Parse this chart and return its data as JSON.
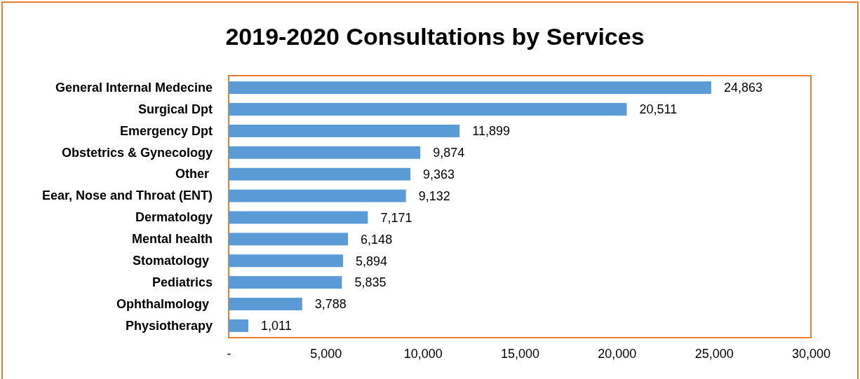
{
  "chart_data": {
    "type": "bar",
    "orientation": "horizontal",
    "title": "2019-2020 Consultations by Services",
    "categories": [
      "General Internal Medecine",
      "Surgical Dpt",
      "Emergency Dpt",
      "Obstetrics & Gynecology",
      "Other ",
      "Eear, Nose and Throat (ENT)",
      "Dermatology",
      "Mental health",
      "Stomatology ",
      "Pediatrics",
      "Ophthalmology ",
      "Physiotherapy"
    ],
    "values": [
      24863,
      20511,
      11899,
      9874,
      9363,
      9132,
      7171,
      6148,
      5894,
      5835,
      3788,
      1011
    ],
    "color": "#5b9bd5",
    "xlim": [
      0,
      30000
    ],
    "xticks": [
      {
        "value": 0,
        "label": "-"
      },
      {
        "value": 5000,
        "label": "5,000"
      },
      {
        "value": 10000,
        "label": "10,000"
      },
      {
        "value": 15000,
        "label": "15,000"
      },
      {
        "value": 20000,
        "label": "20,000"
      },
      {
        "value": 25000,
        "label": "25,000"
      },
      {
        "value": 30000,
        "label": "30,000"
      }
    ],
    "value_labels": [
      "24,863",
      "20,511",
      "11,899",
      "9,874",
      "9,363",
      "9,132",
      "7,171",
      "6,148",
      "5,894",
      "5,835",
      "3,788",
      "1,011"
    ],
    "grid": false
  }
}
